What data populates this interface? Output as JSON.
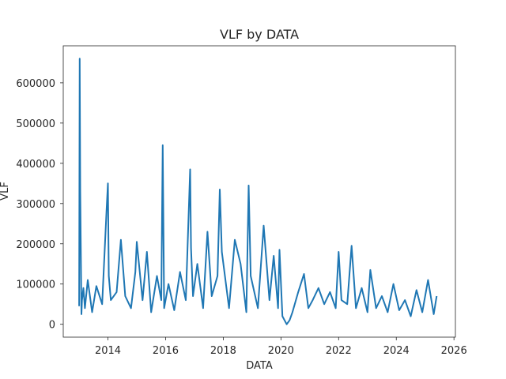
{
  "chart_data": {
    "type": "line",
    "title": "VLF by DATA",
    "xlabel": "DATA",
    "ylabel": "VLF",
    "xlim": [
      2012.45,
      2026.05
    ],
    "ylim": [
      -32000,
      692000
    ],
    "x_ticks": [
      2014,
      2016,
      2018,
      2020,
      2022,
      2024,
      2026
    ],
    "x_tick_labels": [
      "2014",
      "2016",
      "2018",
      "2020",
      "2022",
      "2024",
      "2026"
    ],
    "y_ticks": [
      0,
      100000,
      200000,
      300000,
      400000,
      500000,
      600000
    ],
    "y_tick_labels": [
      "0",
      "100000",
      "200000",
      "300000",
      "400000",
      "500000",
      "600000"
    ],
    "grid": false,
    "line_color": "#1f77b4",
    "series": [
      {
        "x": [
          2013.0,
          2013.02,
          2013.04,
          2013.06,
          2013.08,
          2013.1,
          2013.15,
          2013.2,
          2013.3,
          2013.45,
          2013.6,
          2013.8,
          2013.95,
          2014.0,
          2014.03,
          2014.1,
          2014.3,
          2014.45,
          2014.6,
          2014.8,
          2014.95,
          2015.0,
          2015.2,
          2015.35,
          2015.5,
          2015.7,
          2015.85,
          2015.9,
          2015.95,
          2016.1,
          2016.3,
          2016.5,
          2016.7,
          2016.85,
          2016.88,
          2016.95,
          2017.1,
          2017.3,
          2017.45,
          2017.6,
          2017.8,
          2017.88,
          2017.95,
          2018.2,
          2018.4,
          2018.6,
          2018.8,
          2018.88,
          2018.95,
          2019.2,
          2019.4,
          2019.6,
          2019.75,
          2019.9,
          2019.95,
          2020.05,
          2020.2,
          2020.3,
          2020.4,
          2020.6,
          2020.8,
          2020.95,
          2021.1,
          2021.3,
          2021.5,
          2021.7,
          2021.9,
          2022.0,
          2022.1,
          2022.3,
          2022.45,
          2022.6,
          2022.8,
          2023.0,
          2023.1,
          2023.3,
          2023.5,
          2023.7,
          2023.9,
          2024.1,
          2024.3,
          2024.5,
          2024.7,
          2024.9,
          2025.1,
          2025.3,
          2025.4
        ],
        "values": [
          45000,
          660000,
          330000,
          190000,
          25000,
          60000,
          90000,
          40000,
          110000,
          30000,
          95000,
          50000,
          280000,
          350000,
          120000,
          60000,
          80000,
          210000,
          70000,
          40000,
          130000,
          205000,
          60000,
          180000,
          30000,
          120000,
          60000,
          445000,
          40000,
          100000,
          35000,
          130000,
          60000,
          385000,
          190000,
          70000,
          150000,
          40000,
          230000,
          70000,
          120000,
          335000,
          180000,
          40000,
          210000,
          150000,
          30000,
          345000,
          120000,
          40000,
          245000,
          60000,
          170000,
          40000,
          185000,
          20000,
          0,
          10000,
          30000,
          80000,
          125000,
          40000,
          60000,
          90000,
          50000,
          80000,
          40000,
          180000,
          60000,
          50000,
          195000,
          40000,
          90000,
          30000,
          135000,
          40000,
          70000,
          30000,
          100000,
          35000,
          60000,
          20000,
          85000,
          30000,
          110000,
          25000,
          70000
        ]
      }
    ]
  }
}
